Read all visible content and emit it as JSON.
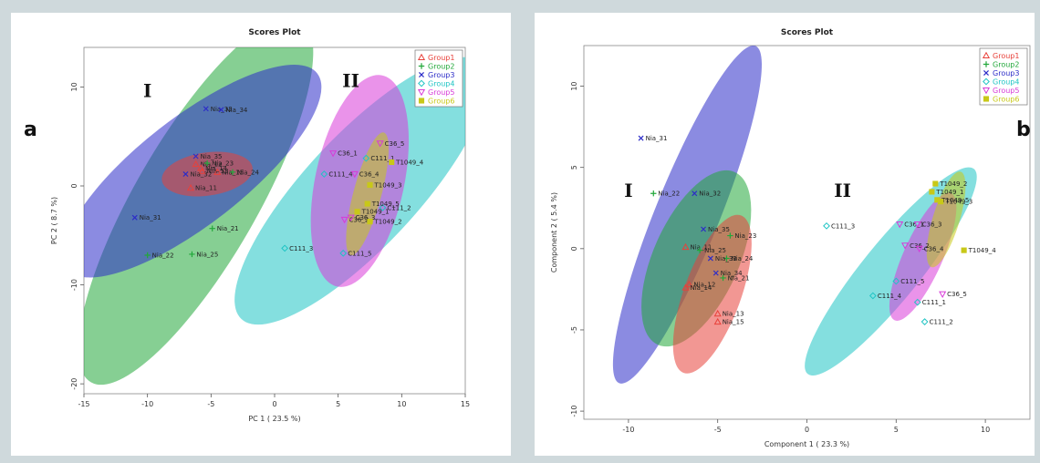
{
  "panels": {
    "left_letter": "a",
    "right_letter": "b"
  },
  "colors": {
    "Group1": "#e8413a",
    "Group2": "#22a83a",
    "Group3": "#2c2cc8",
    "Group4": "#1fc4c4",
    "Group5": "#d83ad8",
    "Group6": "#c8c818"
  },
  "chart_data": [
    {
      "type": "scatter",
      "title": "Scores Plot",
      "xlabel": "PC 1 ( 23.5 %)",
      "ylabel": "PC 2 ( 8.7 %)",
      "xlim": [
        -15,
        15
      ],
      "ylim": [
        -21,
        14
      ],
      "xticks": [
        "-15",
        "-10",
        "-5",
        "0",
        "5",
        "10",
        "15"
      ],
      "yticks": [
        "-20",
        "-10",
        "0",
        "10"
      ],
      "xtick_values": [
        -15,
        -10,
        -5,
        0,
        5,
        10,
        15
      ],
      "ytick_values": [
        -20,
        -10,
        0,
        10
      ],
      "legend": [
        "Group1",
        "Group2",
        "Group3",
        "Group4",
        "Group5",
        "Group6"
      ],
      "legend_position": "top-right",
      "annotations": [
        {
          "text": "I",
          "x": -10,
          "y": 9
        },
        {
          "text": "II",
          "x": 6,
          "y": 10
        }
      ],
      "ellipses": [
        {
          "group": "Group2",
          "cx": -6.2,
          "cy": -1.5,
          "rx": 16.5,
          "ry": 4.8,
          "angle": 60,
          "opacity": 0.55
        },
        {
          "group": "Group3",
          "cx": -6.5,
          "cy": 1.5,
          "rx": 12.5,
          "ry": 4.2,
          "angle": 38,
          "opacity": 0.55
        },
        {
          "group": "Group1",
          "cx": -5.3,
          "cy": 1.2,
          "rx": 3.6,
          "ry": 1.7,
          "angle": 8,
          "opacity": 0.55
        },
        {
          "group": "Group4",
          "cx": 6.8,
          "cy": -0.5,
          "rx": 13.8,
          "ry": 4.4,
          "angle": 47,
          "opacity": 0.55
        },
        {
          "group": "Group5",
          "cx": 6.7,
          "cy": 0.5,
          "rx": 8.5,
          "ry": 3.5,
          "angle": 78,
          "opacity": 0.55
        },
        {
          "group": "Group6",
          "cx": 7.3,
          "cy": -0.8,
          "rx": 5.0,
          "ry": 1.1,
          "angle": 75,
          "opacity": 0.55
        }
      ],
      "series": [
        {
          "name": "Group1",
          "points": [
            {
              "label": "Nia_11",
              "x": -6.6,
              "y": -0.2
            },
            {
              "label": "Nia_13",
              "x": -5.7,
              "y": 1.5
            },
            {
              "label": "Nia_15",
              "x": -4.5,
              "y": 1.4
            },
            {
              "label": "Nia_12",
              "x": -6.2,
              "y": 2.2
            },
            {
              "label": "Nia_14",
              "x": -5.8,
              "y": 1.8
            }
          ]
        },
        {
          "name": "Group2",
          "points": [
            {
              "label": "Nia_21",
              "x": -4.9,
              "y": -4.3
            },
            {
              "label": "Nia_22",
              "x": -10.0,
              "y": -7.0
            },
            {
              "label": "Nia_25",
              "x": -6.5,
              "y": -6.9
            },
            {
              "label": "Nia_23",
              "x": -5.3,
              "y": 2.3
            },
            {
              "label": "Nia_24",
              "x": -3.3,
              "y": 1.4
            }
          ]
        },
        {
          "name": "Group3",
          "points": [
            {
              "label": "Nia_31",
              "x": -11.0,
              "y": -3.2
            },
            {
              "label": "Nia_32",
              "x": -7.0,
              "y": 1.2
            },
            {
              "label": "Nia_33",
              "x": -5.4,
              "y": 7.8
            },
            {
              "label": "Nia_34",
              "x": -4.2,
              "y": 7.7
            },
            {
              "label": "Nia_35",
              "x": -6.2,
              "y": 3.0
            }
          ]
        },
        {
          "name": "Group4",
          "points": [
            {
              "label": "C111_1",
              "x": 7.2,
              "y": 2.8
            },
            {
              "label": "C111_3",
              "x": 0.8,
              "y": -6.3
            },
            {
              "label": "C111_4",
              "x": 3.9,
              "y": 1.2
            },
            {
              "label": "C111_5",
              "x": 5.4,
              "y": -6.8
            },
            {
              "label": "C111_2",
              "x": 8.5,
              "y": -2.2
            }
          ]
        },
        {
          "name": "Group5",
          "points": [
            {
              "label": "C36_1",
              "x": 4.6,
              "y": 3.3
            },
            {
              "label": "C36_5",
              "x": 8.3,
              "y": 4.3
            },
            {
              "label": "C36_4",
              "x": 6.3,
              "y": 1.2
            },
            {
              "label": "C36_2",
              "x": 5.5,
              "y": -3.4
            },
            {
              "label": "C36_3",
              "x": 6.0,
              "y": -3.2
            }
          ]
        },
        {
          "name": "Group6",
          "points": [
            {
              "label": "T1049_4",
              "x": 9.2,
              "y": 2.4
            },
            {
              "label": "T1049_3",
              "x": 7.5,
              "y": 0.1
            },
            {
              "label": "T1049_5",
              "x": 7.3,
              "y": -1.8
            },
            {
              "label": "T1049_1",
              "x": 6.5,
              "y": -2.6
            },
            {
              "label": "T1049_2",
              "x": 7.5,
              "y": -3.6
            }
          ]
        }
      ]
    },
    {
      "type": "scatter",
      "title": "Scores Plot",
      "xlabel": "Component 1 ( 23.3 %)",
      "ylabel": "Component 2 ( 5.4 %)",
      "xlim": [
        -12.5,
        12.5
      ],
      "ylim": [
        -10.5,
        12.5
      ],
      "xticks": [
        "-10",
        "-5",
        "0",
        "5",
        "10"
      ],
      "yticks": [
        "-10",
        "-5",
        "0",
        "5",
        "10"
      ],
      "xtick_values": [
        -10,
        -5,
        0,
        5,
        10
      ],
      "ytick_values": [
        -10,
        -5,
        0,
        5,
        10
      ],
      "legend": [
        "Group1",
        "Group2",
        "Group3",
        "Group4",
        "Group5",
        "Group6"
      ],
      "legend_position": "top-right",
      "annotations": [
        {
          "text": "I",
          "x": -10,
          "y": 3.2
        },
        {
          "text": "II",
          "x": 2,
          "y": 3.2
        }
      ],
      "ellipses": [
        {
          "group": "Group3",
          "cx": -6.7,
          "cy": 2.1,
          "rx": 10.2,
          "ry": 1.8,
          "angle": 68,
          "opacity": 0.55
        },
        {
          "group": "Group2",
          "cx": -6.2,
          "cy": -0.6,
          "rx": 5.3,
          "ry": 2.4,
          "angle": 66,
          "opacity": 0.55
        },
        {
          "group": "Group1",
          "cx": -5.3,
          "cy": -2.8,
          "rx": 4.7,
          "ry": 1.6,
          "angle": 70,
          "opacity": 0.55
        },
        {
          "group": "Group4",
          "cx": 4.7,
          "cy": -1.4,
          "rx": 7.4,
          "ry": 1.6,
          "angle": 51,
          "opacity": 0.55
        },
        {
          "group": "Group5",
          "cx": 6.5,
          "cy": -0.5,
          "rx": 3.9,
          "ry": 1.1,
          "angle": 66,
          "opacity": 0.55
        },
        {
          "group": "Group6",
          "cx": 7.8,
          "cy": 1.8,
          "rx": 2.8,
          "ry": 0.75,
          "angle": 73,
          "opacity": 0.55
        }
      ],
      "series": [
        {
          "name": "Group1",
          "points": [
            {
              "label": "Nia_11",
              "x": -6.8,
              "y": 0.1
            },
            {
              "label": "Nia_12",
              "x": -6.6,
              "y": -2.2
            },
            {
              "label": "Nia_14",
              "x": -6.8,
              "y": -2.4
            },
            {
              "label": "Nia_13",
              "x": -5.0,
              "y": -4.0
            },
            {
              "label": "Nia_15",
              "x": -5.0,
              "y": -4.5
            }
          ]
        },
        {
          "name": "Group2",
          "points": [
            {
              "label": "Nia_22",
              "x": -8.6,
              "y": 3.4
            },
            {
              "label": "Nia_23",
              "x": -4.3,
              "y": 0.8
            },
            {
              "label": "Nia_25",
              "x": -6.0,
              "y": -0.1
            },
            {
              "label": "Nia_21",
              "x": -4.7,
              "y": -1.8
            },
            {
              "label": "Nia_24",
              "x": -4.5,
              "y": -0.6
            }
          ]
        },
        {
          "name": "Group3",
          "points": [
            {
              "label": "Nia_31",
              "x": -9.3,
              "y": 6.8
            },
            {
              "label": "Nia_32",
              "x": -6.3,
              "y": 3.4
            },
            {
              "label": "Nia_35",
              "x": -5.8,
              "y": 1.2
            },
            {
              "label": "Nia_33",
              "x": -5.4,
              "y": -0.6
            },
            {
              "label": "Nia_34",
              "x": -5.1,
              "y": -1.5
            }
          ]
        },
        {
          "name": "Group4",
          "points": [
            {
              "label": "C111_3",
              "x": 1.1,
              "y": 1.4
            },
            {
              "label": "C111_5",
              "x": 5.0,
              "y": -2.0
            },
            {
              "label": "C111_4",
              "x": 3.7,
              "y": -2.9
            },
            {
              "label": "C111_1",
              "x": 6.2,
              "y": -3.3
            },
            {
              "label": "C111_2",
              "x": 6.6,
              "y": -4.5
            }
          ]
        },
        {
          "name": "Group5",
          "points": [
            {
              "label": "C36_1",
              "x": 5.2,
              "y": 1.5
            },
            {
              "label": "C36_3",
              "x": 6.2,
              "y": 1.5
            },
            {
              "label": "C36_2",
              "x": 5.5,
              "y": 0.2
            },
            {
              "label": "C36_4",
              "x": 6.3,
              "y": 0.0
            },
            {
              "label": "C36_5",
              "x": 7.6,
              "y": -2.8
            }
          ]
        },
        {
          "name": "Group6",
          "points": [
            {
              "label": "T1049_2",
              "x": 7.2,
              "y": 4.0
            },
            {
              "label": "T1049_1",
              "x": 7.0,
              "y": 3.5
            },
            {
              "label": "T1049_5",
              "x": 7.3,
              "y": 3.0
            },
            {
              "label": "T1049_3",
              "x": 7.5,
              "y": 2.9
            },
            {
              "label": "T1049_4",
              "x": 8.8,
              "y": -0.1
            }
          ]
        }
      ]
    }
  ]
}
